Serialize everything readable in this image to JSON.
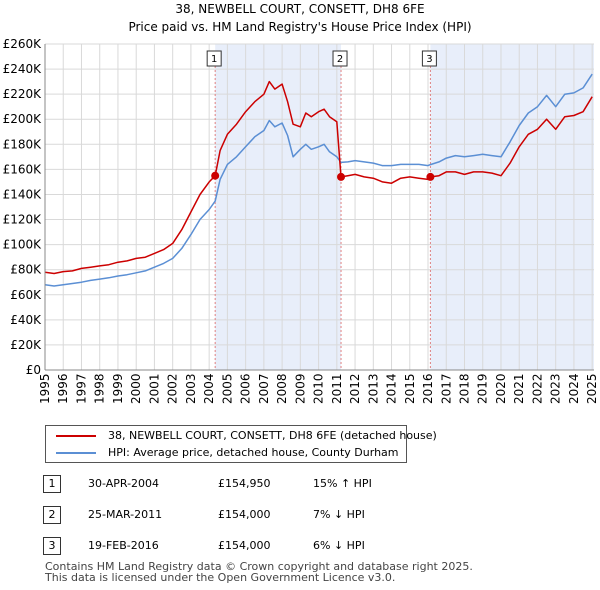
{
  "chart_data": {
    "type": "line",
    "title": "38, NEWBELL COURT, CONSETT, DH8 6FE",
    "subtitle": "Price paid vs. HM Land Registry's House Price Index (HPI)",
    "xlabel": "",
    "ylabel": "",
    "xlim": [
      1995,
      2025.1
    ],
    "ylim": [
      0,
      260000
    ],
    "grid": true,
    "x_ticks": [
      1995,
      1996,
      1997,
      1998,
      1999,
      2000,
      2001,
      2002,
      2003,
      2004,
      2005,
      2006,
      2007,
      2008,
      2009,
      2010,
      2011,
      2012,
      2013,
      2014,
      2015,
      2016,
      2017,
      2018,
      2019,
      2020,
      2021,
      2022,
      2023,
      2024,
      2025
    ],
    "y_ticks": [
      {
        "value": 0,
        "label": "£0"
      },
      {
        "value": 20000,
        "label": "£20K"
      },
      {
        "value": 40000,
        "label": "£40K"
      },
      {
        "value": 60000,
        "label": "£60K"
      },
      {
        "value": 80000,
        "label": "£80K"
      },
      {
        "value": 100000,
        "label": "£100K"
      },
      {
        "value": 120000,
        "label": "£120K"
      },
      {
        "value": 140000,
        "label": "£140K"
      },
      {
        "value": 160000,
        "label": "£160K"
      },
      {
        "value": 180000,
        "label": "£180K"
      },
      {
        "value": 200000,
        "label": "£200K"
      },
      {
        "value": 220000,
        "label": "£220K"
      },
      {
        "value": 240000,
        "label": "£240K"
      },
      {
        "value": 260000,
        "label": "£260K"
      }
    ],
    "series": [
      {
        "name": "38, NEWBELL COURT, CONSETT, DH8 6FE (detached house)",
        "color": "#cc0000",
        "x": [
          1995,
          1995.5,
          1996,
          1996.5,
          1997,
          1997.5,
          1998,
          1998.5,
          1999,
          1999.5,
          2000,
          2000.5,
          2001,
          2001.5,
          2002,
          2002.5,
          2003,
          2003.5,
          2004,
          2004.33,
          2004.6,
          2005,
          2005.5,
          2006,
          2006.5,
          2007,
          2007.3,
          2007.6,
          2008,
          2008.3,
          2008.6,
          2009,
          2009.3,
          2009.6,
          2010,
          2010.3,
          2010.6,
          2011,
          2011.23,
          2011.6,
          2012,
          2012.5,
          2013,
          2013.5,
          2014,
          2014.5,
          2015,
          2015.5,
          2016,
          2016.13,
          2016.6,
          2017,
          2017.5,
          2018,
          2018.5,
          2019,
          2019.5,
          2020,
          2020.5,
          2021,
          2021.5,
          2022,
          2022.5,
          2023,
          2023.5,
          2024,
          2024.5,
          2025
        ],
        "y": [
          78000,
          77000,
          78500,
          79000,
          81000,
          82000,
          83000,
          84000,
          86000,
          87000,
          89000,
          90000,
          93000,
          96000,
          101000,
          112000,
          126000,
          140000,
          150000,
          154950,
          175000,
          188000,
          196000,
          206000,
          214000,
          220000,
          230000,
          224000,
          228000,
          214000,
          196000,
          194000,
          205000,
          202000,
          206000,
          208000,
          202000,
          198000,
          154000,
          155000,
          156000,
          154000,
          153000,
          150000,
          149000,
          153000,
          154000,
          153000,
          152000,
          154000,
          155000,
          158000,
          158000,
          156000,
          158000,
          158000,
          157000,
          155000,
          165000,
          178000,
          188000,
          192000,
          200000,
          192000,
          202000,
          203000,
          206000,
          218000
        ]
      },
      {
        "name": "HPI: Average price, detached house, County Durham",
        "color": "#5b8fd4",
        "x": [
          1995,
          1995.5,
          1996,
          1996.5,
          1997,
          1997.5,
          1998,
          1998.5,
          1999,
          1999.5,
          2000,
          2000.5,
          2001,
          2001.5,
          2002,
          2002.5,
          2003,
          2003.5,
          2004,
          2004.33,
          2004.6,
          2005,
          2005.5,
          2006,
          2006.5,
          2007,
          2007.3,
          2007.6,
          2008,
          2008.3,
          2008.6,
          2009,
          2009.3,
          2009.6,
          2010,
          2010.3,
          2010.6,
          2011,
          2011.23,
          2011.6,
          2012,
          2012.5,
          2013,
          2013.5,
          2014,
          2014.5,
          2015,
          2015.5,
          2016,
          2016.13,
          2016.6,
          2017,
          2017.5,
          2018,
          2018.5,
          2019,
          2019.5,
          2020,
          2020.5,
          2021,
          2021.5,
          2022,
          2022.5,
          2023,
          2023.5,
          2024,
          2024.5,
          2025
        ],
        "y": [
          68000,
          67000,
          68000,
          69000,
          70000,
          71500,
          72500,
          73500,
          75000,
          76000,
          77500,
          79000,
          82000,
          85000,
          89000,
          97000,
          108000,
          120000,
          128000,
          134700,
          152000,
          164000,
          170000,
          178000,
          186000,
          191000,
          199000,
          194000,
          197000,
          187000,
          170000,
          176000,
          180000,
          176000,
          178000,
          180000,
          174000,
          170000,
          165600,
          166000,
          167000,
          166000,
          165000,
          163000,
          163000,
          164000,
          164000,
          164000,
          163000,
          163800,
          166000,
          169000,
          171000,
          170000,
          171000,
          172000,
          171000,
          170000,
          182000,
          195000,
          205000,
          210000,
          219000,
          210000,
          220000,
          221000,
          225000,
          236000
        ]
      }
    ],
    "markers": [
      {
        "label": "1",
        "x": 2004.33,
        "y": 154950
      },
      {
        "label": "2",
        "x": 2011.23,
        "y": 154000
      },
      {
        "label": "3",
        "x": 2016.13,
        "y": 154000
      }
    ],
    "shaded_ranges": [
      [
        2004.33,
        2011.23
      ],
      [
        2016.13,
        2025.1
      ]
    ]
  },
  "legend": {
    "property": "38, NEWBELL COURT, CONSETT, DH8 6FE (detached house)",
    "hpi": "HPI: Average price, detached house, County Durham"
  },
  "sales": [
    {
      "num": "1",
      "date": "30-APR-2004",
      "price": "£154,950",
      "hpi": "15% ↑ HPI"
    },
    {
      "num": "2",
      "date": "25-MAR-2011",
      "price": "£154,000",
      "hpi": "7% ↓ HPI"
    },
    {
      "num": "3",
      "date": "19-FEB-2016",
      "price": "£154,000",
      "hpi": "6% ↓ HPI"
    }
  ],
  "footer": {
    "line1": "Contains HM Land Registry data © Crown copyright and database right 2025.",
    "line2": "This data is licensed under the Open Government Licence v3.0."
  }
}
